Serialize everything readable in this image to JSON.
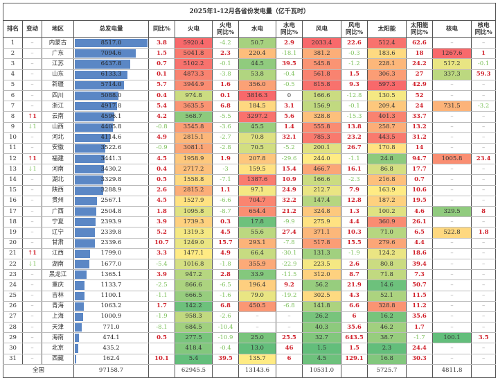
{
  "chart_data": {
    "type": "table",
    "title": "2025年1-12月各省份发电量（亿千瓦时）",
    "columns": [
      "排名",
      "变动",
      "地区",
      "总发电量",
      "同比%",
      "火电",
      "火电\n同比%",
      "水电",
      "水电\n同比%",
      "风电",
      "风电\n同比%",
      "太阳能",
      "太阳能\n同比%",
      "核电",
      "核电\n同比%"
    ],
    "rows": [
      {
        "rank": "1",
        "change": "–",
        "region": "内蒙古",
        "total": "8517.0",
        "total_yoy": "3.8",
        "thermal": "5920.4",
        "thermal_yoy": "-4.2",
        "hydro": "50.7",
        "hydro_yoy": "2.9",
        "wind": "2033.4",
        "wind_yoy": "22.6",
        "solar": "512.4",
        "solar_yoy": "62.6",
        "nuclear": "–",
        "nuclear_yoy": "–"
      },
      {
        "rank": "2",
        "change": "–",
        "region": "广东",
        "total": "7094.6",
        "total_yoy": "1.5",
        "thermal": "5041.8",
        "thermal_yoy": "2.3",
        "hydro": "220.4",
        "hydro_yoy": "-18.1",
        "wind": "381.2",
        "wind_yoy": "-0.3",
        "solar": "183.6",
        "solar_yoy": "18",
        "nuclear": "1267.6",
        "nuclear_yoy": "1"
      },
      {
        "rank": "3",
        "change": "–",
        "region": "江苏",
        "total": "6437.8",
        "total_yoy": "0.7",
        "thermal": "5102.2",
        "thermal_yoy": "-0.1",
        "hydro": "44.5",
        "hydro_yoy": "39.5",
        "wind": "545.8",
        "wind_yoy": "-1.2",
        "solar": "228.1",
        "solar_yoy": "24.2",
        "nuclear": "517.2",
        "nuclear_yoy": "-0.1"
      },
      {
        "rank": "4",
        "change": "–",
        "region": "山东",
        "total": "6133.3",
        "total_yoy": "0.1",
        "thermal": "4873.3",
        "thermal_yoy": "-3.8",
        "hydro": "53.8",
        "hydro_yoy": "-0.4",
        "wind": "561.8",
        "wind_yoy": "1.5",
        "solar": "306.3",
        "solar_yoy": "27",
        "nuclear": "337.3",
        "nuclear_yoy": "59.3"
      },
      {
        "rank": "5",
        "change": "–",
        "region": "新疆",
        "total": "5714.0",
        "total_yoy": "5.7",
        "thermal": "3944.9",
        "thermal_yoy": "1.6",
        "hydro": "356.0",
        "hydro_yoy": "-0.5",
        "wind": "815.8",
        "wind_yoy": "9.3",
        "solar": "597.3",
        "solar_yoy": "42.9",
        "nuclear": "–",
        "nuclear_yoy": "–"
      },
      {
        "rank": "6",
        "change": "–",
        "region": "四川",
        "total": "5088.0",
        "total_yoy": "0.4",
        "thermal": "974.8",
        "thermal_yoy": "0.1",
        "hydro": "3816.3",
        "hydro_yoy": "0",
        "wind": "166.6",
        "wind_yoy": "-12.8",
        "solar": "130.5",
        "solar_yoy": "52",
        "nuclear": "–",
        "nuclear_yoy": "–"
      },
      {
        "rank": "7",
        "change": "–",
        "region": "浙江",
        "total": "4917.8",
        "total_yoy": "5.4",
        "thermal": "3635.5",
        "thermal_yoy": "6.8",
        "hydro": "184.5",
        "hydro_yoy": "3.1",
        "wind": "156.9",
        "wind_yoy": "-0.1",
        "solar": "209.4",
        "solar_yoy": "24",
        "nuclear": "731.5",
        "nuclear_yoy": "-3.2"
      },
      {
        "rank": "8",
        "change": "↑1",
        "region": "云南",
        "total": "4596.1",
        "total_yoy": "4.2",
        "thermal": "568.7",
        "thermal_yoy": "-5.5",
        "hydro": "3297.2",
        "hydro_yoy": "5.6",
        "wind": "328.8",
        "wind_yoy": "-15.3",
        "solar": "401.3",
        "solar_yoy": "33.7",
        "nuclear": "–",
        "nuclear_yoy": "–"
      },
      {
        "rank": "9",
        "change": "↓1",
        "region": "山西",
        "total": "4405.8",
        "total_yoy": "-0.8",
        "thermal": "3545.8",
        "thermal_yoy": "-3.6",
        "hydro": "45.5",
        "hydro_yoy": "1.4",
        "wind": "555.8",
        "wind_yoy": "13.8",
        "solar": "258.7",
        "solar_yoy": "13.2",
        "nuclear": "–",
        "nuclear_yoy": "–"
      },
      {
        "rank": "10",
        "change": "–",
        "region": "河北",
        "total": "4114.6",
        "total_yoy": "4.9",
        "thermal": "2815.1",
        "thermal_yoy": "-2.7",
        "hydro": "70.8",
        "hydro_yoy": "32.1",
        "wind": "785.3",
        "wind_yoy": "23.2",
        "solar": "443.5",
        "solar_yoy": "31.2",
        "nuclear": "–",
        "nuclear_yoy": "–"
      },
      {
        "rank": "11",
        "change": "–",
        "region": "安徽",
        "total": "3522.6",
        "total_yoy": "-0.9",
        "thermal": "3081.1",
        "thermal_yoy": "-2.8",
        "hydro": "70.5",
        "hydro_yoy": "-5.2",
        "wind": "200.1",
        "wind_yoy": "26.7",
        "solar": "170.8",
        "solar_yoy": "14",
        "nuclear": "–",
        "nuclear_yoy": "–"
      },
      {
        "rank": "12",
        "change": "↑1",
        "region": "福建",
        "total": "3441.3",
        "total_yoy": "4.5",
        "thermal": "1958.9",
        "thermal_yoy": "1.9",
        "hydro": "207.8",
        "hydro_yoy": "-29.6",
        "wind": "244.0",
        "wind_yoy": "-1.1",
        "solar": "24.8",
        "solar_yoy": "94.7",
        "nuclear": "1005.8",
        "nuclear_yoy": "23.4"
      },
      {
        "rank": "13",
        "change": "↓1",
        "region": "河南",
        "total": "3430.2",
        "total_yoy": "0.4",
        "thermal": "2717.2",
        "thermal_yoy": "-3",
        "hydro": "159.5",
        "hydro_yoy": "15.4",
        "wind": "466.7",
        "wind_yoy": "16.1",
        "solar": "86.8",
        "solar_yoy": "17.7",
        "nuclear": "–",
        "nuclear_yoy": "–"
      },
      {
        "rank": "14",
        "change": "–",
        "region": "湖北",
        "total": "3329.8",
        "total_yoy": "0.5",
        "thermal": "1558.8",
        "thermal_yoy": "-7.1",
        "hydro": "1387.6",
        "hydro_yoy": "10.9",
        "wind": "166.6",
        "wind_yoy": "-2.3",
        "solar": "216.8",
        "solar_yoy": "0.7",
        "nuclear": "–",
        "nuclear_yoy": "–"
      },
      {
        "rank": "15",
        "change": "–",
        "region": "陕西",
        "total": "3288.9",
        "total_yoy": "2.6",
        "thermal": "2815.2",
        "thermal_yoy": "1.1",
        "hydro": "97.1",
        "hydro_yoy": "24.9",
        "wind": "212.7",
        "wind_yoy": "7.9",
        "solar": "163.9",
        "solar_yoy": "10.6",
        "nuclear": "–",
        "nuclear_yoy": "–"
      },
      {
        "rank": "16",
        "change": "–",
        "region": "贵州",
        "total": "2567.1",
        "total_yoy": "4.5",
        "thermal": "1527.9",
        "thermal_yoy": "-6.6",
        "hydro": "704.7",
        "hydro_yoy": "32.2",
        "wind": "147.4",
        "wind_yoy": "12.8",
        "solar": "187.2",
        "solar_yoy": "19.5",
        "nuclear": "–",
        "nuclear_yoy": "–"
      },
      {
        "rank": "17",
        "change": "–",
        "region": "广西",
        "total": "2504.8",
        "total_yoy": "1.8",
        "thermal": "1095.8",
        "thermal_yoy": "-8.7",
        "hydro": "654.4",
        "hydro_yoy": "21.2",
        "wind": "324.8",
        "wind_yoy": "1.3",
        "solar": "100.2",
        "solar_yoy": "4.6",
        "nuclear": "329.5",
        "nuclear_yoy": "8"
      },
      {
        "rank": "18",
        "change": "–",
        "region": "宁夏",
        "total": "2393.9",
        "total_yoy": "3.9",
        "thermal": "1739.3",
        "thermal_yoy": "0.3",
        "hydro": "17.8",
        "hydro_yoy": "-9.9",
        "wind": "275.9",
        "wind_yoy": "4.4",
        "solar": "360.9",
        "solar_yoy": "26.1",
        "nuclear": "–",
        "nuclear_yoy": "–"
      },
      {
        "rank": "19",
        "change": "–",
        "region": "辽宁",
        "total": "2339.8",
        "total_yoy": "5.2",
        "thermal": "1319.3",
        "thermal_yoy": "4.5",
        "hydro": "55.6",
        "hydro_yoy": "27.4",
        "wind": "371.1",
        "wind_yoy": "10.3",
        "solar": "71.0",
        "solar_yoy": "6.5",
        "nuclear": "522.8",
        "nuclear_yoy": "1.8"
      },
      {
        "rank": "20",
        "change": "–",
        "region": "甘肃",
        "total": "2339.6",
        "total_yoy": "10.7",
        "thermal": "1249.0",
        "thermal_yoy": "15.7",
        "hydro": "293.1",
        "hydro_yoy": "-7.8",
        "wind": "517.8",
        "wind_yoy": "15.5",
        "solar": "279.6",
        "solar_yoy": "4.4",
        "nuclear": "–",
        "nuclear_yoy": "–"
      },
      {
        "rank": "21",
        "change": "↑1",
        "region": "江西",
        "total": "1799.0",
        "total_yoy": "3.3",
        "thermal": "1477.1",
        "thermal_yoy": "4.9",
        "hydro": "66.4",
        "hydro_yoy": "-30.1",
        "wind": "131.3",
        "wind_yoy": "-1.9",
        "solar": "124.2",
        "solar_yoy": "18.6",
        "nuclear": "–",
        "nuclear_yoy": "–"
      },
      {
        "rank": "22",
        "change": "↓1",
        "region": "湖南",
        "total": "1677.0",
        "total_yoy": "-5.4",
        "thermal": "1016.8",
        "thermal_yoy": "-1.8",
        "hydro": "355.9",
        "hydro_yoy": "-22.9",
        "wind": "223.5",
        "wind_yoy": "2.6",
        "solar": "80.8",
        "solar_yoy": "39.4",
        "nuclear": "–",
        "nuclear_yoy": "–"
      },
      {
        "rank": "23",
        "change": "–",
        "region": "黑龙江",
        "total": "1365.1",
        "total_yoy": "3.9",
        "thermal": "947.2",
        "thermal_yoy": "2.8",
        "hydro": "33.9",
        "hydro_yoy": "-11.5",
        "wind": "312.0",
        "wind_yoy": "8.7",
        "solar": "71.8",
        "solar_yoy": "7.3",
        "nuclear": "–",
        "nuclear_yoy": "–"
      },
      {
        "rank": "24",
        "change": "–",
        "region": "重庆",
        "total": "1133.7",
        "total_yoy": "-2.5",
        "thermal": "866.6",
        "thermal_yoy": "-6.5",
        "hydro": "196.4",
        "hydro_yoy": "9.2",
        "wind": "56.2",
        "wind_yoy": "21.9",
        "solar": "14.6",
        "solar_yoy": "50.7",
        "nuclear": "–",
        "nuclear_yoy": "–"
      },
      {
        "rank": "25",
        "change": "–",
        "region": "吉林",
        "total": "1100.1",
        "total_yoy": "-1.1",
        "thermal": "666.5",
        "thermal_yoy": "-1.6",
        "hydro": "79.0",
        "hydro_yoy": "-19.2",
        "wind": "302.5",
        "wind_yoy": "4.3",
        "solar": "52.1",
        "solar_yoy": "11.5",
        "nuclear": "–",
        "nuclear_yoy": "–"
      },
      {
        "rank": "26",
        "change": "–",
        "region": "青海",
        "total": "1063.2",
        "total_yoy": "1.7",
        "thermal": "142.2",
        "thermal_yoy": "6.8",
        "hydro": "450.5",
        "hydro_yoy": "-6.8",
        "wind": "141.8",
        "wind_yoy": "6.6",
        "solar": "328.8",
        "solar_yoy": "11.2",
        "nuclear": "–",
        "nuclear_yoy": "–"
      },
      {
        "rank": "27",
        "change": "–",
        "region": "上海",
        "total": "1000.9",
        "total_yoy": "-1.9",
        "thermal": "958.3",
        "thermal_yoy": "-2.6",
        "hydro": "–",
        "hydro_yoy": "–",
        "wind": "26.2",
        "wind_yoy": "6",
        "solar": "16.2",
        "solar_yoy": "35.6",
        "nuclear": "–",
        "nuclear_yoy": "–"
      },
      {
        "rank": "28",
        "change": "–",
        "region": "天津",
        "total": "771.0",
        "total_yoy": "-8.1",
        "thermal": "684.5",
        "thermal_yoy": "-10.4",
        "hydro": "–",
        "hydro_yoy": "–",
        "wind": "40.3",
        "wind_yoy": "35.6",
        "solar": "46.2",
        "solar_yoy": "1.7",
        "nuclear": "–",
        "nuclear_yoy": "–"
      },
      {
        "rank": "29",
        "change": "–",
        "region": "海南",
        "total": "474.1",
        "total_yoy": "0.5",
        "thermal": "277.5",
        "thermal_yoy": "-10.9",
        "hydro": "25.0",
        "hydro_yoy": "25.5",
        "wind": "32.7",
        "wind_yoy": "643.5",
        "solar": "38.7",
        "solar_yoy": "-1.7",
        "nuclear": "100.1",
        "nuclear_yoy": "3.5"
      },
      {
        "rank": "30",
        "change": "–",
        "region": "北京",
        "total": "435.2",
        "total_yoy": "",
        "thermal": "418.4",
        "thermal_yoy": "-0.4",
        "hydro": "13.0",
        "hydro_yoy": "46",
        "wind": "1.5",
        "wind_yoy": "1.5",
        "solar": "2.3",
        "solar_yoy": "24.4",
        "nuclear": "–",
        "nuclear_yoy": "–"
      },
      {
        "rank": "31",
        "change": "–",
        "region": "西藏",
        "total": "162.4",
        "total_yoy": "10.1",
        "thermal": "5.4",
        "thermal_yoy": "39.5",
        "hydro": "135.7",
        "hydro_yoy": "6",
        "wind": "4.5",
        "wind_yoy": "129.1",
        "solar": "16.8",
        "solar_yoy": "30.3",
        "nuclear": "–",
        "nuclear_yoy": "–"
      }
    ],
    "totals": {
      "label": "全国",
      "total": "97158.7",
      "thermal": "62945.5",
      "hydro": "13143.6",
      "wind": "10531.0",
      "solar": "5725.7",
      "nuclear": "4811.8"
    },
    "total_max": 8517.0,
    "heat_colors": {
      "low": "#63be7b",
      "mid": "#ffeb84",
      "high": "#f8696b"
    },
    "bar_color": "#5b87c5",
    "positive_color": "#d0202a",
    "negative_color": "#7cc05a"
  }
}
